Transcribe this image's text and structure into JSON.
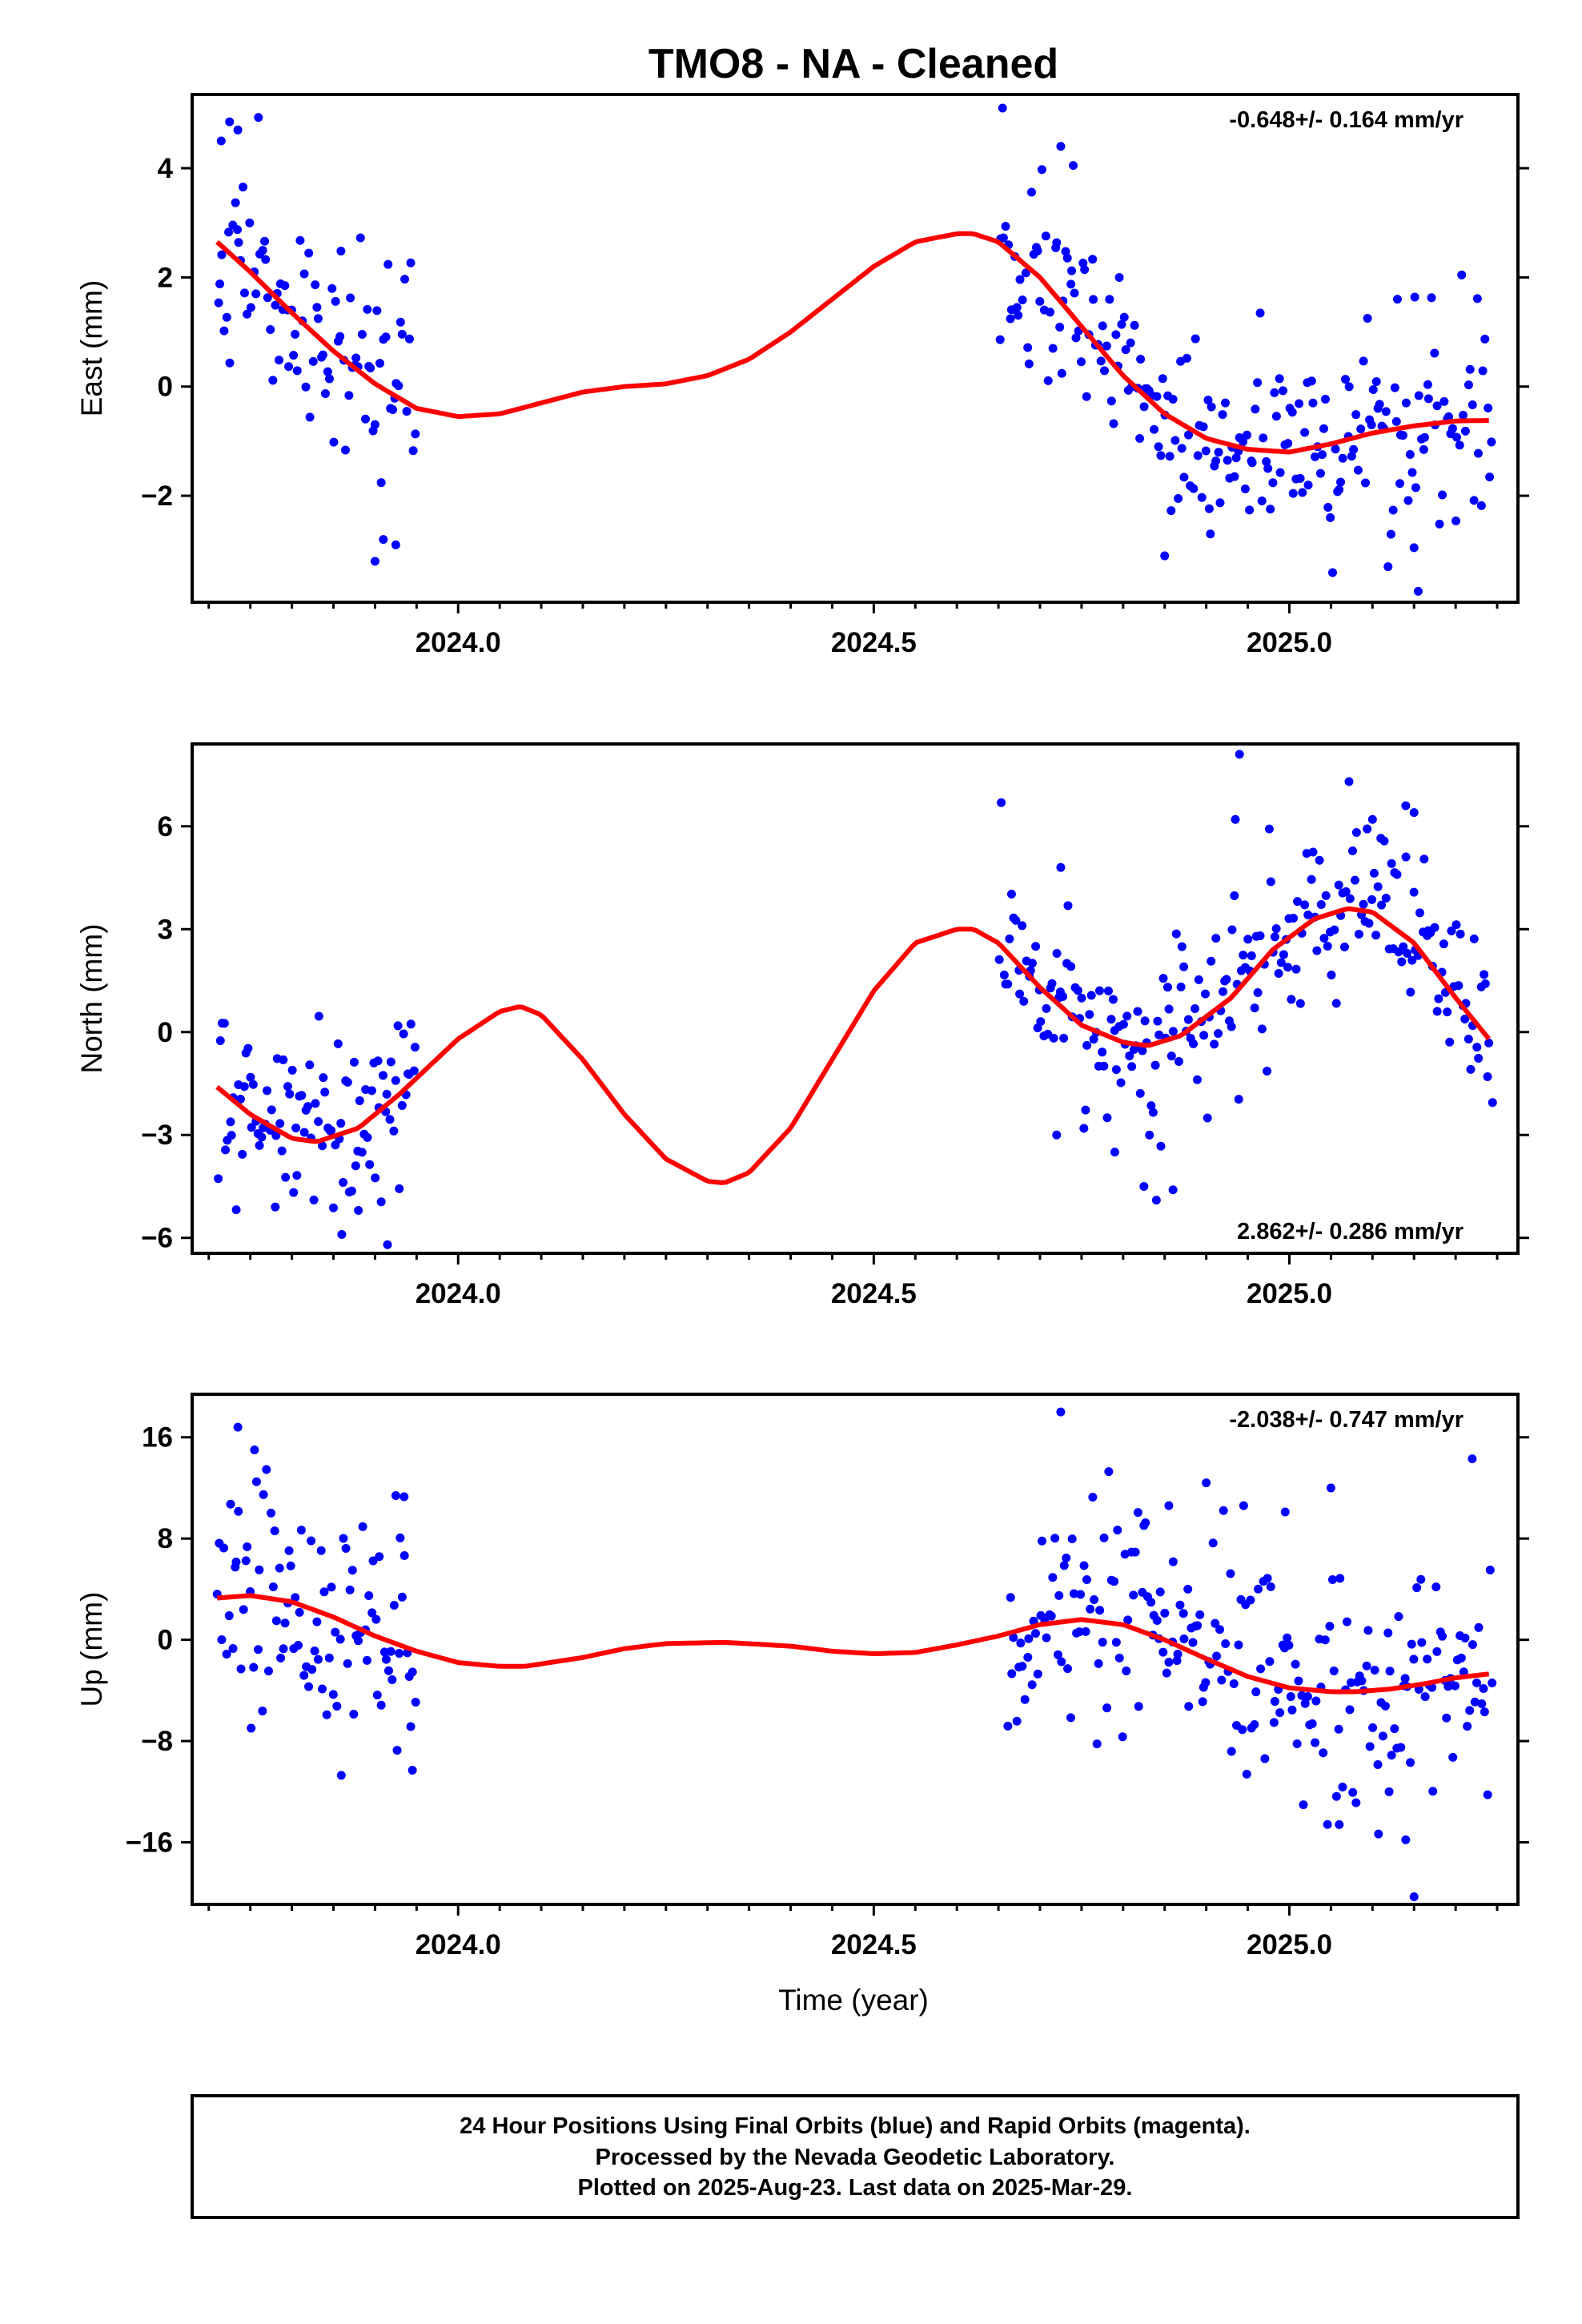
{
  "title": "TMO8  - NA - Cleaned",
  "colors": {
    "points": "#0000ff",
    "fit": "#ff0000",
    "frame": "#000000"
  },
  "xlabel": "Time (year)",
  "footer": {
    "line1": "24 Hour Positions Using Final Orbits (blue) and Rapid Orbits (magenta).",
    "line2": "Processed by the Nevada Geodetic Laboratory.",
    "line3": "Plotted on 2025-Aug-23. Last data on 2025-Mar-29."
  },
  "chart_data": [
    {
      "type": "scatter",
      "panel": "east",
      "ylabel": "East (mm)",
      "rate": "-0.648+/- 0.164 mm/yr",
      "rate_position": "top-right",
      "xlim": [
        2023.68,
        2025.275
      ],
      "ylim": [
        -3.95,
        5.35
      ],
      "xticks": [
        {
          "value": 2024.0,
          "label": "2024.0"
        },
        {
          "value": 2024.5,
          "label": "2024.5"
        },
        {
          "value": 2025.0,
          "label": "2025.0"
        }
      ],
      "yticks": [
        {
          "value": 4,
          "label": "4"
        },
        {
          "value": 2,
          "label": "2"
        },
        {
          "value": 0,
          "label": "0"
        },
        {
          "value": -2,
          "label": "−2"
        }
      ],
      "fit": {
        "x": [
          2023.71,
          2023.75,
          2023.8,
          2023.85,
          2023.9,
          2023.95,
          2024.0,
          2024.05,
          2024.1,
          2024.15,
          2024.2,
          2024.25,
          2024.3,
          2024.35,
          2024.4,
          2024.45,
          2024.5,
          2024.55,
          2024.6,
          2024.62,
          2024.65,
          2024.7,
          2024.75,
          2024.8,
          2024.85,
          2024.9,
          2024.95,
          2025.0,
          2025.05,
          2025.1,
          2025.15,
          2025.2,
          2025.24
        ],
        "y": [
          2.65,
          2.1,
          1.35,
          0.65,
          0.05,
          -0.4,
          -0.55,
          -0.5,
          -0.3,
          -0.1,
          0.0,
          0.05,
          0.2,
          0.5,
          1.0,
          1.6,
          2.2,
          2.65,
          2.8,
          2.8,
          2.65,
          2.0,
          1.1,
          0.2,
          -0.5,
          -0.95,
          -1.15,
          -1.2,
          -1.05,
          -0.85,
          -0.72,
          -0.63,
          -0.62
        ]
      },
      "segments": [
        {
          "start": 2023.71,
          "end": 2023.95,
          "n": 95,
          "scatter": 1.0
        },
        {
          "start": 2024.65,
          "end": 2025.245,
          "n": 230,
          "scatter": 0.95
        }
      ],
      "outliers": [
        [
          2023.715,
          4.5
        ],
        [
          2023.725,
          4.85
        ],
        [
          2023.735,
          4.7
        ],
        [
          2023.9,
          -3.2
        ],
        [
          2023.91,
          -2.8
        ],
        [
          2023.925,
          -2.9
        ],
        [
          2024.655,
          5.1
        ],
        [
          2024.725,
          4.4
        ],
        [
          2024.74,
          4.05
        ],
        [
          2024.85,
          -3.1
        ],
        [
          2024.905,
          -2.7
        ],
        [
          2025.13,
          1.6
        ],
        [
          2025.155,
          -3.75
        ],
        [
          2025.15,
          -2.95
        ]
      ]
    },
    {
      "type": "scatter",
      "panel": "north",
      "ylabel": "North (mm)",
      "rate": "2.862+/- 0.286 mm/yr",
      "rate_position": "bottom-right",
      "xlim": [
        2023.68,
        2025.275
      ],
      "ylim": [
        -6.45,
        8.4
      ],
      "xticks": [
        {
          "value": 2024.0,
          "label": "2024.0"
        },
        {
          "value": 2024.5,
          "label": "2024.5"
        },
        {
          "value": 2025.0,
          "label": "2025.0"
        }
      ],
      "yticks": [
        {
          "value": 6,
          "label": "6"
        },
        {
          "value": 3,
          "label": "3"
        },
        {
          "value": 0,
          "label": "0"
        },
        {
          "value": -3,
          "label": "−3"
        },
        {
          "value": -6,
          "label": "−6"
        }
      ],
      "fit": {
        "x": [
          2023.71,
          2023.75,
          2023.8,
          2023.83,
          2023.88,
          2023.93,
          2024.0,
          2024.05,
          2024.075,
          2024.1,
          2024.15,
          2024.2,
          2024.25,
          2024.3,
          2024.32,
          2024.35,
          2024.4,
          2024.45,
          2024.5,
          2024.55,
          2024.6,
          2024.62,
          2024.65,
          2024.7,
          2024.75,
          2024.8,
          2024.83,
          2024.87,
          2024.93,
          2024.98,
          2025.03,
          2025.07,
          2025.1,
          2025.15,
          2025.2,
          2025.24
        ],
        "y": [
          -1.6,
          -2.4,
          -3.1,
          -3.2,
          -2.8,
          -1.8,
          -0.2,
          0.6,
          0.75,
          0.5,
          -0.8,
          -2.4,
          -3.7,
          -4.35,
          -4.4,
          -4.1,
          -2.8,
          -0.8,
          1.2,
          2.6,
          3.0,
          3.0,
          2.6,
          1.3,
          0.2,
          -0.3,
          -0.4,
          -0.1,
          1.0,
          2.4,
          3.3,
          3.6,
          3.5,
          2.6,
          1.0,
          -0.2
        ]
      },
      "segments": [
        {
          "start": 2023.71,
          "end": 2023.95,
          "n": 100,
          "scatter": 1.35
        },
        {
          "start": 2024.65,
          "end": 2025.245,
          "n": 235,
          "scatter": 1.25
        }
      ],
      "outliers": [
        [
          2023.915,
          -6.2
        ],
        [
          2023.86,
          -5.9
        ],
        [
          2023.78,
          -5.1
        ],
        [
          2023.88,
          -5.2
        ],
        [
          2024.825,
          -4.5
        ],
        [
          2024.84,
          -4.9
        ],
        [
          2024.86,
          -4.6
        ],
        [
          2024.79,
          -3.5
        ],
        [
          2024.72,
          -3.0
        ],
        [
          2024.94,
          8.1
        ],
        [
          2025.1,
          6.2
        ],
        [
          2025.14,
          6.6
        ],
        [
          2025.15,
          6.4
        ],
        [
          2024.935,
          6.2
        ],
        [
          2024.725,
          4.8
        ]
      ]
    },
    {
      "type": "scatter",
      "panel": "up",
      "ylabel": "Up (mm)",
      "rate": "-2.038+/- 0.747 mm/yr",
      "rate_position": "top-right",
      "xlim": [
        2023.68,
        2025.275
      ],
      "ylim": [
        -20.9,
        19.4
      ],
      "xticks": [
        {
          "value": 2024.0,
          "label": "2024.0"
        },
        {
          "value": 2024.5,
          "label": "2024.5"
        },
        {
          "value": 2025.0,
          "label": "2025.0"
        }
      ],
      "yticks": [
        {
          "value": 16,
          "label": "16"
        },
        {
          "value": 8,
          "label": "8"
        },
        {
          "value": 0,
          "label": "0"
        },
        {
          "value": -8,
          "label": "−8"
        },
        {
          "value": -16,
          "label": "−16"
        }
      ],
      "fit": {
        "x": [
          2023.71,
          2023.75,
          2023.8,
          2023.85,
          2023.9,
          2023.95,
          2024.0,
          2024.05,
          2024.08,
          2024.15,
          2024.2,
          2024.25,
          2024.32,
          2024.4,
          2024.45,
          2024.5,
          2024.55,
          2024.6,
          2024.65,
          2024.7,
          2024.75,
          2024.8,
          2024.85,
          2024.9,
          2024.95,
          2025.0,
          2025.05,
          2025.08,
          2025.12,
          2025.16,
          2025.2,
          2025.24
        ],
        "y": [
          3.3,
          3.5,
          3.0,
          1.8,
          0.3,
          -0.9,
          -1.8,
          -2.1,
          -2.1,
          -1.4,
          -0.7,
          -0.3,
          -0.2,
          -0.5,
          -0.9,
          -1.1,
          -1.0,
          -0.4,
          0.3,
          1.2,
          1.6,
          1.2,
          0.0,
          -1.5,
          -2.9,
          -3.8,
          -4.1,
          -4.1,
          -3.9,
          -3.5,
          -3.0,
          -2.7
        ]
      },
      "segments": [
        {
          "start": 2023.71,
          "end": 2023.95,
          "n": 95,
          "scatter": 4.6
        },
        {
          "start": 2024.66,
          "end": 2025.245,
          "n": 225,
          "scatter": 4.4
        }
      ],
      "outliers": [
        [
          2023.735,
          16.8
        ],
        [
          2023.755,
          15.0
        ],
        [
          2023.925,
          11.4
        ],
        [
          2023.935,
          11.3
        ],
        [
          2023.945,
          -10.3
        ],
        [
          2024.725,
          18.0
        ],
        [
          2024.9,
          12.4
        ],
        [
          2024.855,
          10.6
        ],
        [
          2024.945,
          10.6
        ],
        [
          2025.05,
          12.0
        ],
        [
          2024.995,
          10.1
        ],
        [
          2025.15,
          -20.3
        ],
        [
          2025.14,
          -15.8
        ],
        [
          2025.06,
          -14.6
        ],
        [
          2025.22,
          14.3
        ],
        [
          2025.12,
          -12.0
        ]
      ]
    }
  ]
}
